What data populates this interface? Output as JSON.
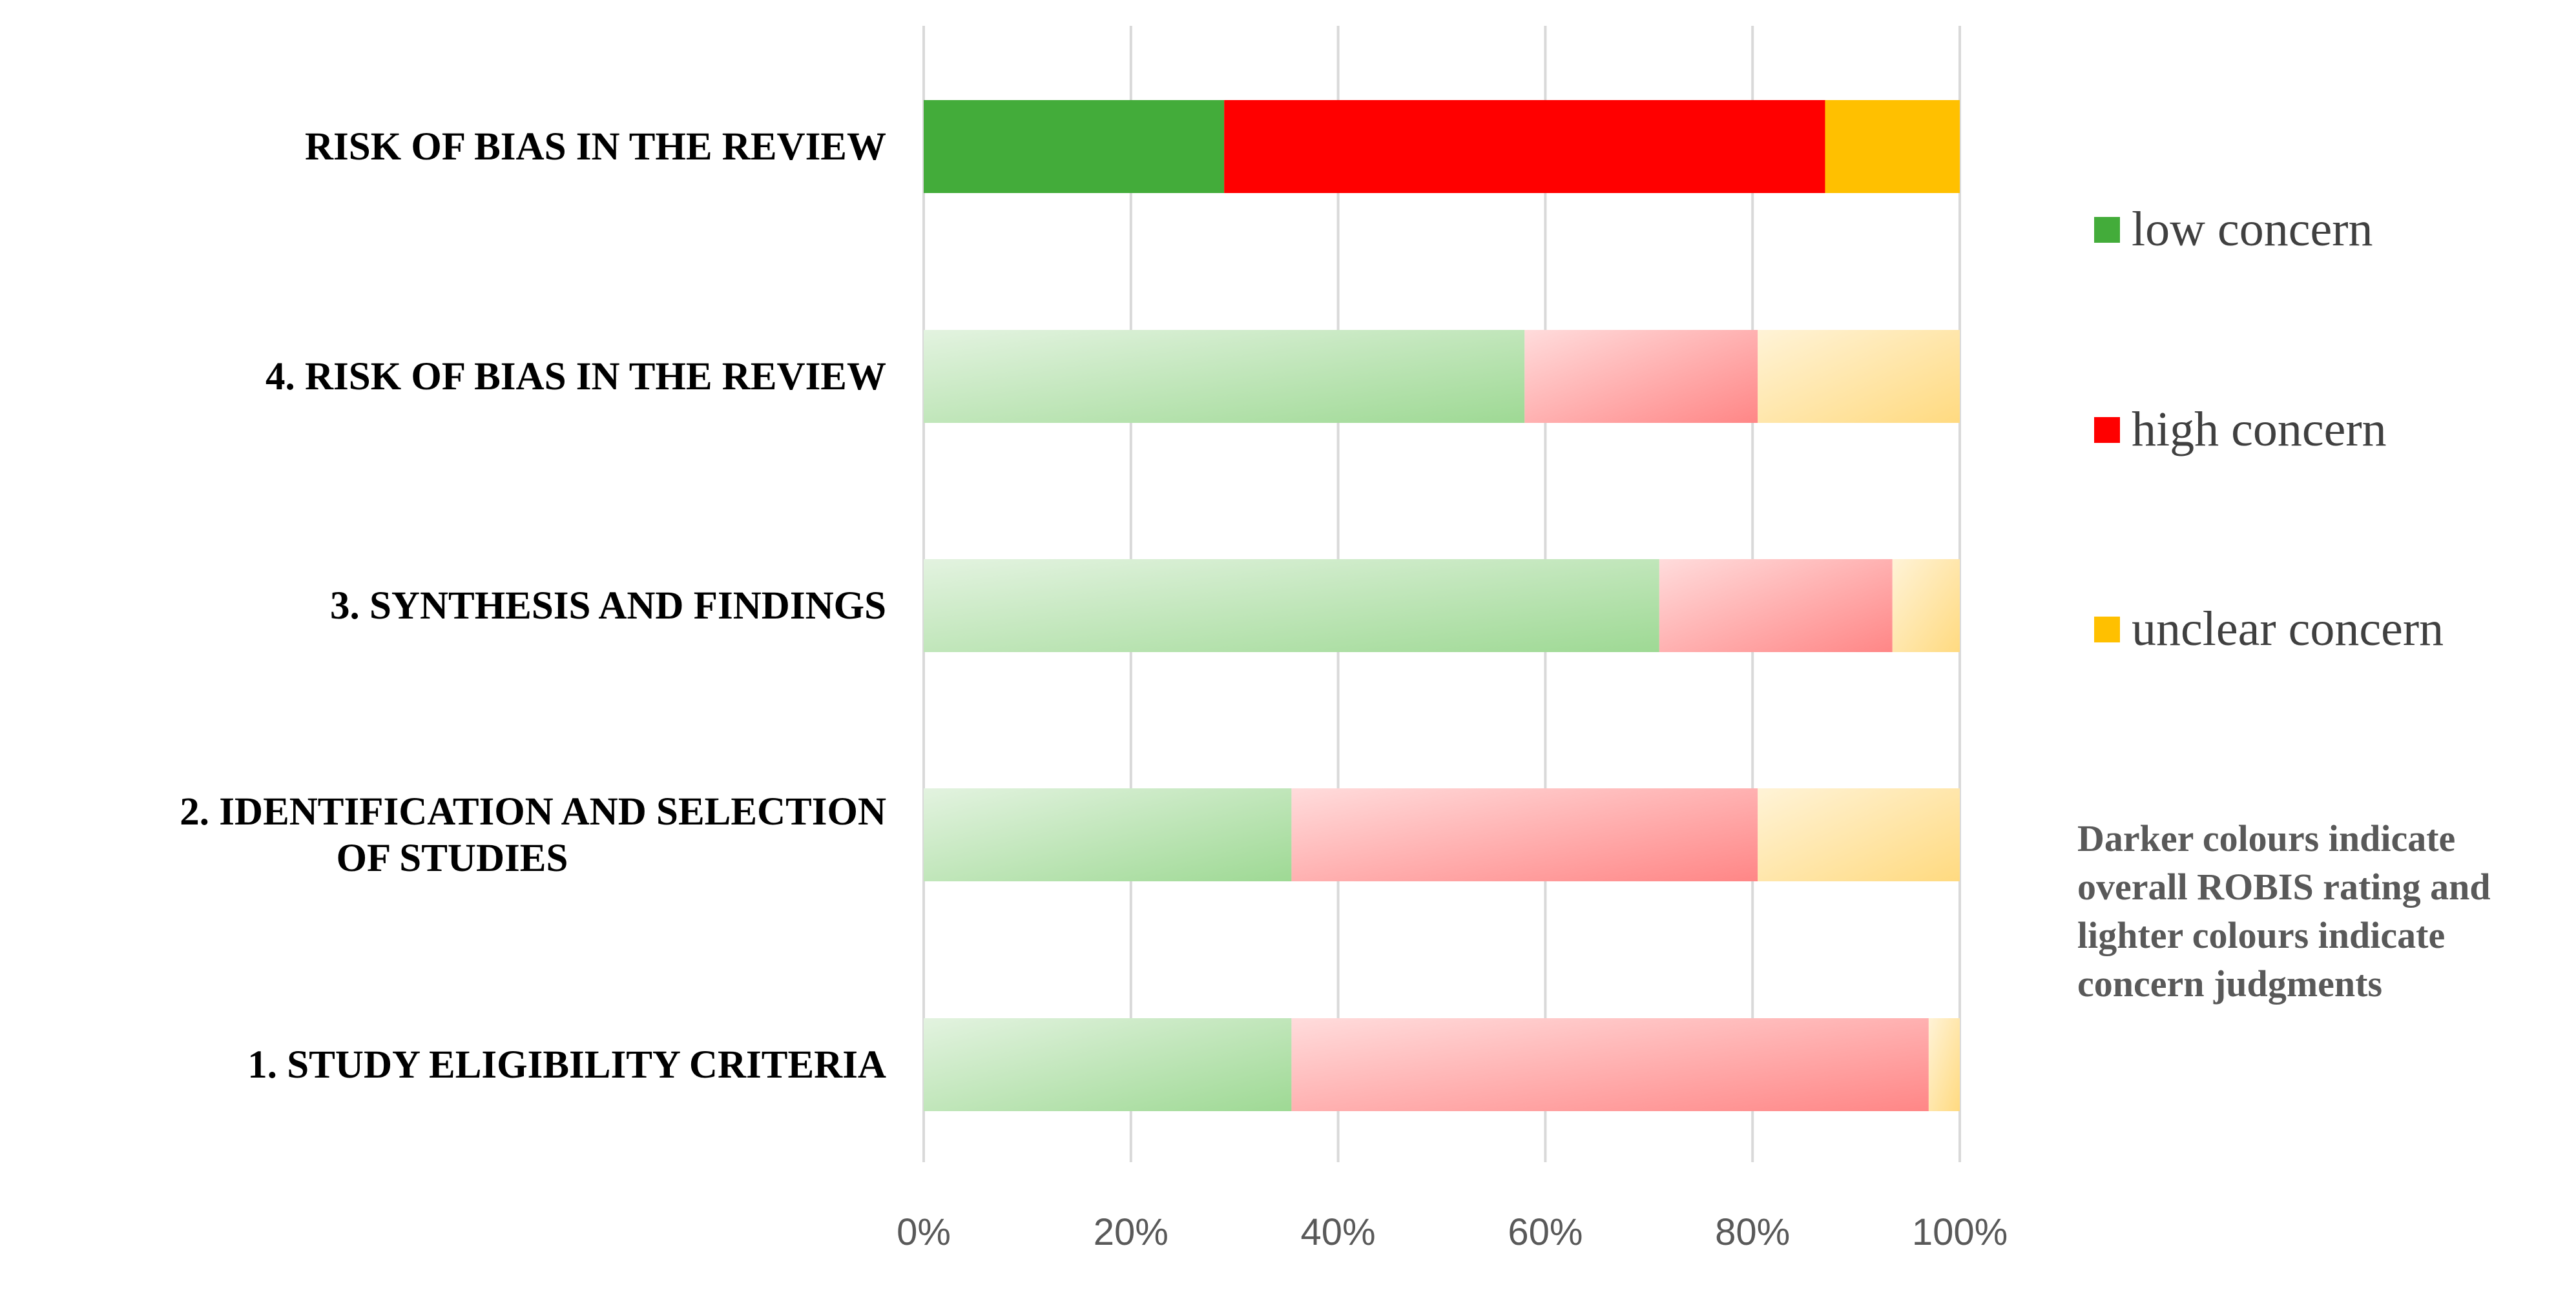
{
  "chart_data": {
    "type": "bar",
    "orientation": "horizontal",
    "stacked": "100%",
    "categories": [
      "RISK OF BIAS IN THE REVIEW",
      "4. RISK OF BIAS IN THE REVIEW",
      "3. SYNTHESIS AND FINDINGS",
      "2. IDENTIFICATION AND SELECTION OF STUDIES",
      "1. STUDY ELIGIBILITY CRITERIA"
    ],
    "series": [
      {
        "name": "low concern",
        "color": "#43AC3A",
        "values": [
          29,
          58,
          71,
          35.5,
          35.5
        ]
      },
      {
        "name": "high concern",
        "color": "#FF0000",
        "values": [
          58,
          22.5,
          22.5,
          45,
          61.5
        ]
      },
      {
        "name": "unclear concern",
        "color": "#FFC000",
        "values": [
          13,
          19.5,
          6.5,
          19.5,
          3
        ]
      }
    ],
    "emphasized_category_index": 0,
    "xlim": [
      0,
      100
    ],
    "x_ticks": [
      "0%",
      "20%",
      "40%",
      "60%",
      "80%",
      "100%"
    ],
    "grid": true,
    "legend_position": "right",
    "note": "Darker colours indicate overall ROBIS rating and lighter colours indicate concern judgments"
  }
}
